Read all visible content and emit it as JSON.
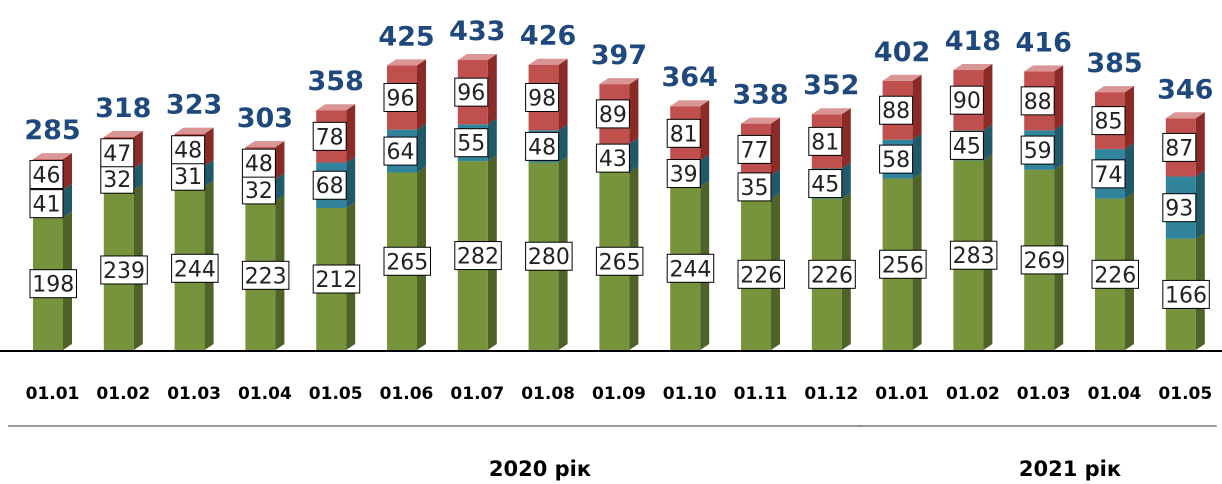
{
  "chart_data": {
    "type": "bar",
    "stacked": true,
    "categories": [
      "01.01",
      "01.02",
      "01.03",
      "01.04",
      "01.05",
      "01.06",
      "01.07",
      "01.08",
      "01.09",
      "01.10",
      "01.11",
      "01.12",
      "01.01",
      "01.02",
      "01.03",
      "01.04",
      "01.05"
    ],
    "series": [
      {
        "values": [
          198,
          239,
          244,
          223,
          212,
          265,
          282,
          280,
          265,
          244,
          226,
          226,
          256,
          283,
          269,
          226,
          166
        ]
      },
      {
        "values": [
          41,
          32,
          31,
          32,
          68,
          64,
          55,
          48,
          43,
          39,
          35,
          45,
          58,
          45,
          59,
          74,
          93
        ]
      },
      {
        "values": [
          46,
          47,
          48,
          48,
          78,
          96,
          96,
          98,
          89,
          81,
          77,
          81,
          88,
          90,
          88,
          85,
          87
        ]
      }
    ],
    "totals": [
      285,
      318,
      323,
      303,
      358,
      425,
      433,
      426,
      397,
      364,
      338,
      352,
      402,
      418,
      416,
      385,
      346
    ],
    "groups": [
      {
        "label": "2020 рік",
        "start": 0,
        "end": 11
      },
      {
        "label": "2021 рік",
        "start": 12,
        "end": 16
      }
    ],
    "ylim": [
      0,
      433
    ],
    "grid": false,
    "legend": "none",
    "colors": {
      "series": [
        "#77933c",
        "#31849b",
        "#c0504d"
      ],
      "series_side": [
        "#4f6228",
        "#215968",
        "#8b2b28"
      ],
      "series_top": [
        "#9bbb59",
        "#4bacc6",
        "#d99694"
      ],
      "totals_text": "#1f497d",
      "axis": "#000000",
      "group_line": "#7f7f7f"
    }
  }
}
